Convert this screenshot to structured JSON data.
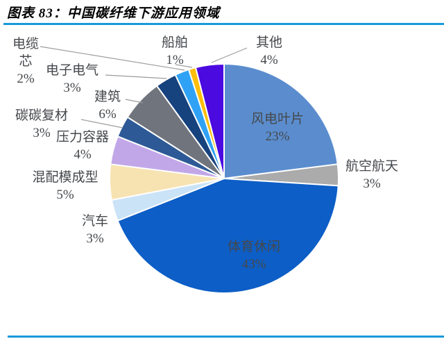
{
  "header": {
    "title": "图表 83：中国碳纤维下游应用领域"
  },
  "accents": {
    "rule_blue": "#1899DB",
    "label_text": "#45484C",
    "leader_line": "#9C9C9C",
    "slice_border": "#FFFFFF"
  },
  "chart_data": {
    "type": "pie",
    "title": "中国碳纤维下游应用领域",
    "figure_label": "图表 83",
    "start_angle_deg": 0,
    "direction": "clockwise",
    "legend_position": "none",
    "units": "%",
    "slices": [
      {
        "label": "风电叶片",
        "value": 23,
        "pct": "23%",
        "color": "#5B8DCE"
      },
      {
        "label": "航空航天",
        "value": 3,
        "pct": "3%",
        "color": "#ABABAB"
      },
      {
        "label": "体育休闲",
        "value": 43,
        "pct": "43%",
        "color": "#0D5EC6"
      },
      {
        "label": "汽车",
        "value": 3,
        "pct": "3%",
        "color": "#CBE3F7"
      },
      {
        "label": "混配模成型",
        "value": 5,
        "pct": "5%",
        "color": "#F7E3B2"
      },
      {
        "label": "压力容器",
        "value": 4,
        "pct": "4%",
        "color": "#C2A7E8"
      },
      {
        "label": "碳碳复材",
        "value": 3,
        "pct": "3%",
        "color": "#2D5A96"
      },
      {
        "label": "建筑",
        "value": 6,
        "pct": "6%",
        "color": "#70757D"
      },
      {
        "label": "电子电气",
        "value": 3,
        "pct": "3%",
        "color": "#16427E"
      },
      {
        "label": "电缆芯",
        "value": 2,
        "pct": "2%",
        "color": "#2FA2F5"
      },
      {
        "label": "船舶",
        "value": 1,
        "pct": "1%",
        "color": "#FFBE0A"
      },
      {
        "label": "其他",
        "value": 4,
        "pct": "4%",
        "color": "#4A0AE0"
      }
    ]
  }
}
